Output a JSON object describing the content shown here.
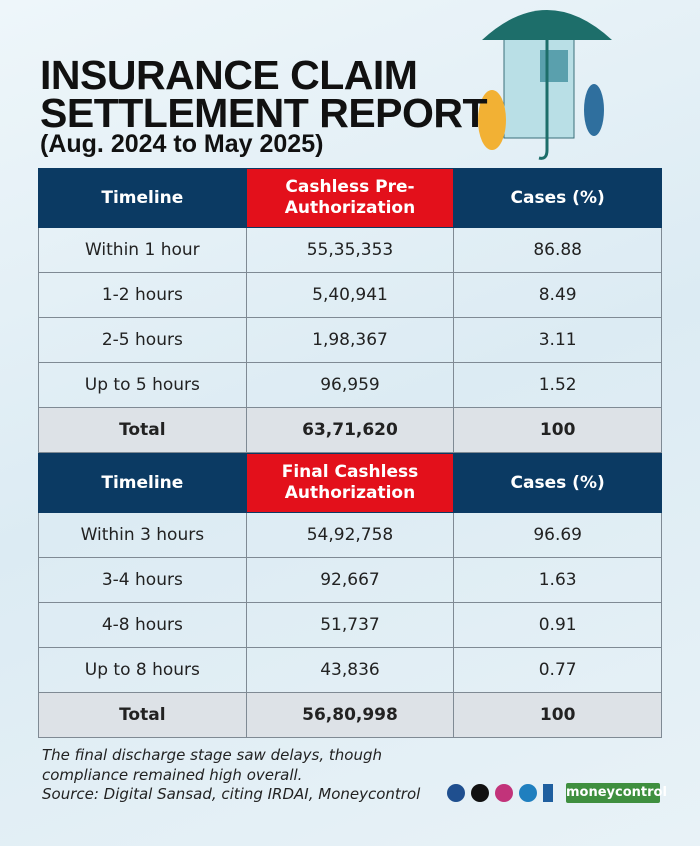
{
  "header": {
    "title_lines": [
      "INSURANCE CLAIM",
      "SETTLEMENT REPORT"
    ],
    "subtitle": "(Aug. 2024 to May 2025)"
  },
  "tables": [
    {
      "columns": [
        "Timeline",
        "Cashless Pre-Authorization",
        "Cases (%)"
      ],
      "rows": [
        [
          "Within 1 hour",
          "55,35,353",
          "86.88"
        ],
        [
          "1-2 hours",
          "5,40,941",
          "8.49"
        ],
        [
          "2-5 hours",
          "1,98,367",
          "3.11"
        ],
        [
          "Up to 5 hours",
          "96,959",
          "1.52"
        ],
        [
          "Total",
          "63,71,620",
          "100"
        ]
      ]
    },
    {
      "columns": [
        "Timeline",
        "Final Cashless Authorization",
        "Cases (%)"
      ],
      "rows": [
        [
          "Within 3 hours",
          "54,92,758",
          "96.69"
        ],
        [
          "3-4 hours",
          "92,667",
          "1.63"
        ],
        [
          "4-8 hours",
          "51,737",
          "0.91"
        ],
        [
          "Up to 8 hours",
          "43,836",
          "0.77"
        ],
        [
          "Total",
          "56,80,998",
          "100"
        ]
      ]
    }
  ],
  "footer": {
    "note_lines": [
      "The final discharge stage saw delays, though",
      "compliance remained high overall."
    ],
    "source": "Source: Digital Sansad, citing IRDAI, Moneycontrol",
    "brand": "moneycontrol"
  }
}
